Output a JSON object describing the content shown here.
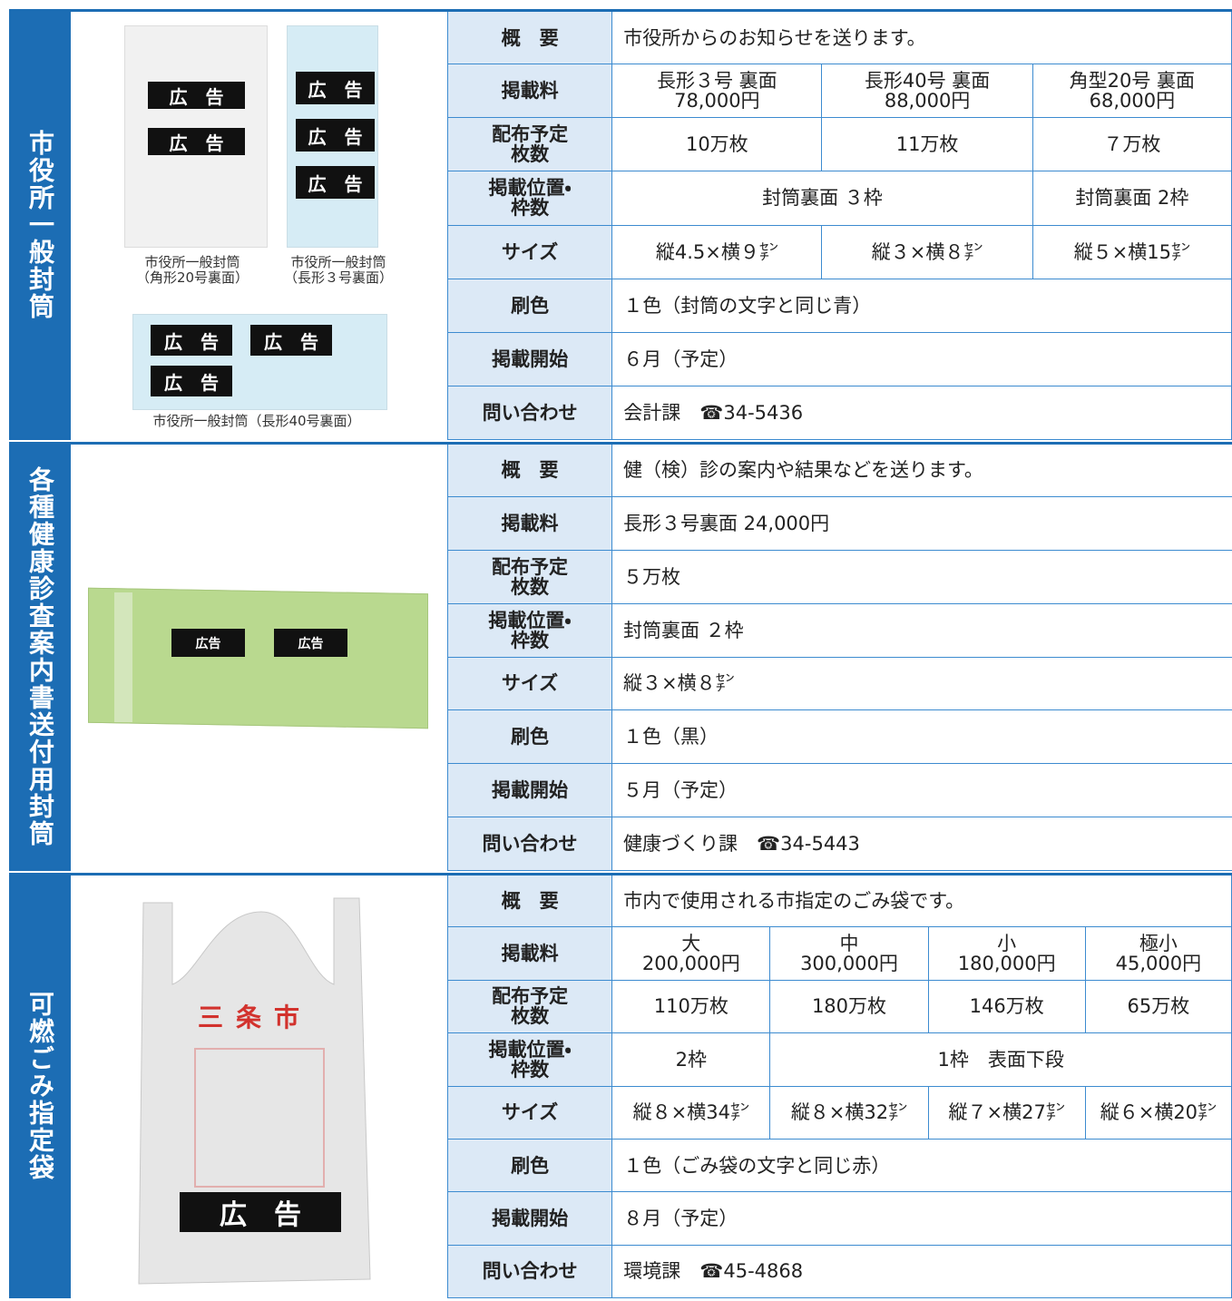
{
  "sections": [
    {
      "title": "市役所一般封筒",
      "ad_label": "広　告",
      "captions": [
        "市役所一般封筒\n（角形20号裏面）",
        "市役所一般封筒\n（長形３号裏面）",
        "市役所一般封筒（長形40号裏面）"
      ],
      "rows": [
        {
          "label": "概　要",
          "value": "市役所からのお知らせを送ります。"
        },
        {
          "label": "掲載料",
          "values": [
            "長形３号 裏面\n78,000円",
            "長形40号 裏面\n88,000円",
            "角型20号 裏面\n68,000円"
          ]
        },
        {
          "label": "配布予定\n枚数",
          "values": [
            "10万枚",
            "11万枚",
            "７万枚"
          ]
        },
        {
          "label": "掲載位置・\n枠数",
          "values": [
            "封筒裏面 ３枠",
            "封筒裏面 2枠"
          ]
        },
        {
          "label": "サイズ",
          "values": [
            "縦4.5×横９㌢",
            "縦３×横８㌢",
            "縦５×横15㌢"
          ]
        },
        {
          "label": "刷色",
          "value": "１色（封筒の文字と同じ青）"
        },
        {
          "label": "掲載開始",
          "value": "６月（予定）"
        },
        {
          "label": "問い合わせ",
          "value": "会計課　☎34-5436"
        }
      ]
    },
    {
      "title": "各種健康診査案内書送付用封筒",
      "ad_label": "広告",
      "rows": [
        {
          "label": "概　要",
          "value": "健（検）診の案内や結果などを送ります。"
        },
        {
          "label": "掲載料",
          "value": "長形３号裏面 24,000円"
        },
        {
          "label": "配布予定\n枚数",
          "value": "５万枚"
        },
        {
          "label": "掲載位置・\n枠数",
          "value": "封筒裏面 ２枠"
        },
        {
          "label": "サイズ",
          "value": "縦３×横８㌢"
        },
        {
          "label": "刷色",
          "value": "１色（黒）"
        },
        {
          "label": "掲載開始",
          "value": "５月（予定）"
        },
        {
          "label": "問い合わせ",
          "value": "健康づくり課　☎34-5443"
        }
      ]
    },
    {
      "title": "可燃ごみ指定袋",
      "ad_label": "広　告",
      "bag_text": "三条市",
      "rows": [
        {
          "label": "概　要",
          "value": "市内で使用される市指定のごみ袋です。"
        },
        {
          "label": "掲載料",
          "values": [
            "大\n200,000円",
            "中\n300,000円",
            "小\n180,000円",
            "極小\n45,000円"
          ]
        },
        {
          "label": "配布予定\n枚数",
          "values": [
            "110万枚",
            "180万枚",
            "146万枚",
            "65万枚"
          ]
        },
        {
          "label": "掲載位置・\n枠数",
          "values": [
            "2枠",
            "1枠　表面下段"
          ]
        },
        {
          "label": "サイズ",
          "values": [
            "縦８×横34㌢",
            "縦８×横32㌢",
            "縦７×横27㌢",
            "縦６×横20㌢"
          ]
        },
        {
          "label": "刷色",
          "value": "１色（ごみ袋の文字と同じ赤）"
        },
        {
          "label": "掲載開始",
          "value": "８月（予定）"
        },
        {
          "label": "問い合わせ",
          "value": "環境課　☎45-4868"
        }
      ]
    }
  ]
}
